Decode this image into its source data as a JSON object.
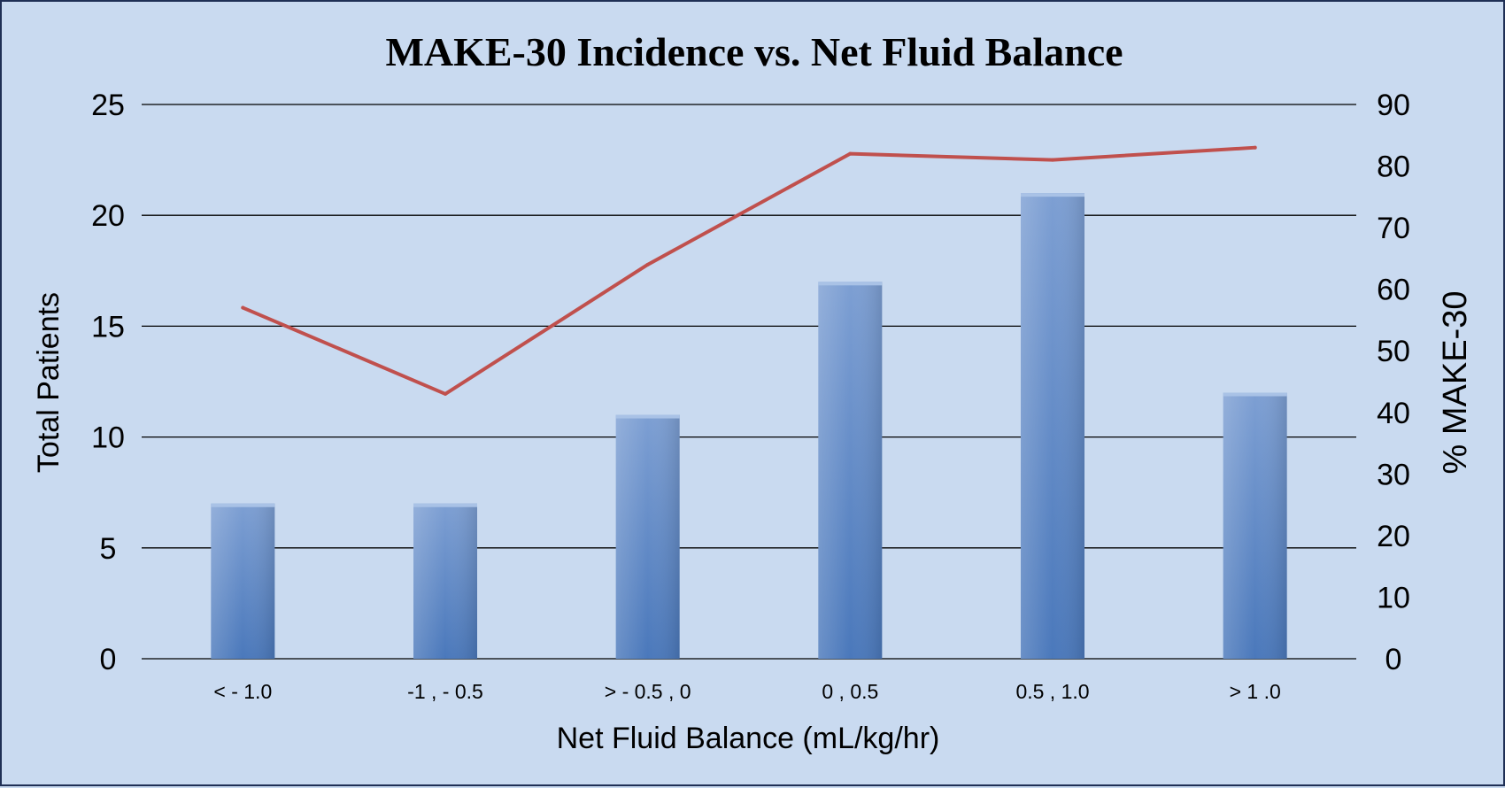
{
  "chart_data": {
    "type": "bar",
    "title": "MAKE-30 Incidence vs. Net Fluid Balance",
    "xlabel": "Net Fluid Balance (mL/kg/hr)",
    "ylabel": "Total Patients",
    "y2label": "% MAKE-30",
    "categories": [
      "< - 1.0",
      "-1 ,  - 0.5",
      "> - 0.5 , 0",
      "0 , 0.5",
      "0.5 , 1.0",
      "> 1 .0"
    ],
    "series": [
      {
        "type": "bar",
        "axis": "left",
        "values": [
          7,
          7,
          11,
          17,
          21,
          12
        ],
        "color": "#5b86c6"
      },
      {
        "type": "line",
        "axis": "right",
        "values": [
          57,
          43,
          64,
          82,
          81,
          83
        ],
        "color": "#c0504d"
      }
    ],
    "ylim": [
      0,
      25
    ],
    "yticks": [
      0,
      5,
      10,
      15,
      20,
      25
    ],
    "y2lim": [
      0,
      90
    ],
    "y2ticks": [
      0,
      10,
      20,
      30,
      40,
      50,
      60,
      70,
      80,
      90
    ],
    "grid": true,
    "legend": "none"
  }
}
